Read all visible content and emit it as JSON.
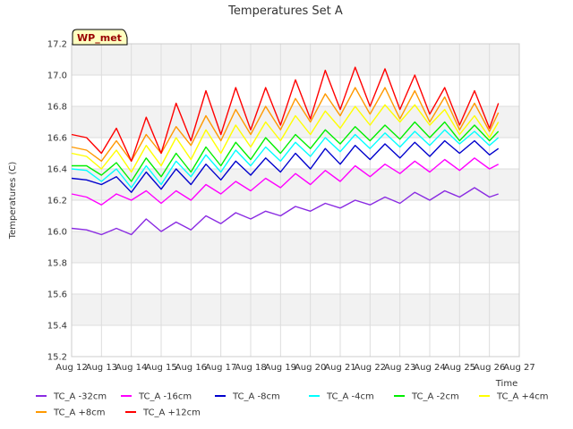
{
  "chart_data": {
    "type": "line",
    "title": "Temperatures Set A",
    "xlabel": "Time",
    "ylabel": "Temperatures (C)",
    "badge": "WP_met",
    "xlim": [
      0,
      15
    ],
    "ylim": [
      15.2,
      17.2
    ],
    "xticks": [
      {
        "v": 0,
        "label": "Aug 12"
      },
      {
        "v": 1,
        "label": "Aug 13"
      },
      {
        "v": 2,
        "label": "Aug 14"
      },
      {
        "v": 3,
        "label": "Aug 15"
      },
      {
        "v": 4,
        "label": "Aug 16"
      },
      {
        "v": 5,
        "label": "Aug 17"
      },
      {
        "v": 6,
        "label": "Aug 18"
      },
      {
        "v": 7,
        "label": "Aug 19"
      },
      {
        "v": 8,
        "label": "Aug 20"
      },
      {
        "v": 9,
        "label": "Aug 21"
      },
      {
        "v": 10,
        "label": "Aug 22"
      },
      {
        "v": 11,
        "label": "Aug 23"
      },
      {
        "v": 12,
        "label": "Aug 24"
      },
      {
        "v": 13,
        "label": "Aug 25"
      },
      {
        "v": 14,
        "label": "Aug 26"
      },
      {
        "v": 15,
        "label": "Aug 27"
      }
    ],
    "yticks": [
      {
        "v": 15.2,
        "label": "15.2"
      },
      {
        "v": 15.4,
        "label": "15.4"
      },
      {
        "v": 15.6,
        "label": "15.6"
      },
      {
        "v": 15.8,
        "label": "15.8"
      },
      {
        "v": 16.0,
        "label": "16.0"
      },
      {
        "v": 16.2,
        "label": "16.2"
      },
      {
        "v": 16.4,
        "label": "16.4"
      },
      {
        "v": 16.6,
        "label": "16.6"
      },
      {
        "v": 16.8,
        "label": "16.8"
      },
      {
        "v": 17.0,
        "label": "17.0"
      },
      {
        "v": 17.2,
        "label": "17.2"
      }
    ],
    "x": [
      0.0,
      0.5,
      1.0,
      1.5,
      2.0,
      2.5,
      3.0,
      3.5,
      4.0,
      4.5,
      5.0,
      5.5,
      6.0,
      6.5,
      7.0,
      7.5,
      8.0,
      8.5,
      9.0,
      9.5,
      10.0,
      10.5,
      11.0,
      11.5,
      12.0,
      12.5,
      13.0,
      13.5,
      14.0,
      14.3
    ],
    "series": [
      {
        "name": "TC_A -32cm",
        "color": "#8a2be2",
        "values": [
          16.02,
          16.01,
          15.98,
          16.02,
          15.98,
          16.08,
          16.0,
          16.06,
          16.01,
          16.1,
          16.05,
          16.12,
          16.08,
          16.13,
          16.1,
          16.16,
          16.13,
          16.18,
          16.15,
          16.2,
          16.17,
          16.22,
          16.18,
          16.25,
          16.2,
          16.26,
          16.22,
          16.28,
          16.22,
          16.24
        ]
      },
      {
        "name": "TC_A -16cm",
        "color": "#ff00ff",
        "values": [
          16.24,
          16.22,
          16.17,
          16.24,
          16.2,
          16.26,
          16.18,
          16.26,
          16.2,
          16.3,
          16.24,
          16.32,
          16.26,
          16.34,
          16.28,
          16.37,
          16.3,
          16.39,
          16.32,
          16.42,
          16.35,
          16.43,
          16.37,
          16.45,
          16.38,
          16.46,
          16.39,
          16.47,
          16.4,
          16.43
        ]
      },
      {
        "name": "TC_A -8cm",
        "color": "#0000cd",
        "values": [
          16.34,
          16.33,
          16.3,
          16.35,
          16.25,
          16.38,
          16.27,
          16.4,
          16.3,
          16.43,
          16.33,
          16.45,
          16.36,
          16.47,
          16.38,
          16.5,
          16.4,
          16.53,
          16.43,
          16.55,
          16.46,
          16.56,
          16.47,
          16.57,
          16.48,
          16.58,
          16.5,
          16.58,
          16.49,
          16.53
        ]
      },
      {
        "name": "TC_A -4cm",
        "color": "#00ffff",
        "values": [
          16.4,
          16.39,
          16.32,
          16.4,
          16.28,
          16.42,
          16.3,
          16.45,
          16.35,
          16.49,
          16.38,
          16.52,
          16.42,
          16.54,
          16.45,
          16.57,
          16.48,
          16.6,
          16.51,
          16.62,
          16.53,
          16.63,
          16.54,
          16.64,
          16.55,
          16.65,
          16.56,
          16.64,
          16.55,
          16.6
        ]
      },
      {
        "name": "TC_A -2cm",
        "color": "#00ee00",
        "values": [
          16.42,
          16.42,
          16.36,
          16.44,
          16.32,
          16.47,
          16.35,
          16.5,
          16.38,
          16.54,
          16.42,
          16.57,
          16.46,
          16.6,
          16.5,
          16.62,
          16.53,
          16.65,
          16.56,
          16.67,
          16.58,
          16.68,
          16.59,
          16.7,
          16.6,
          16.7,
          16.58,
          16.68,
          16.58,
          16.64
        ]
      },
      {
        "name": "TC_A +4cm",
        "color": "#ffff00",
        "values": [
          16.5,
          16.48,
          16.4,
          16.52,
          16.38,
          16.55,
          16.42,
          16.6,
          16.46,
          16.65,
          16.5,
          16.68,
          16.54,
          16.7,
          16.58,
          16.74,
          16.62,
          16.77,
          16.66,
          16.8,
          16.68,
          16.81,
          16.7,
          16.81,
          16.68,
          16.78,
          16.62,
          16.74,
          16.6,
          16.7
        ]
      },
      {
        "name": "TC_A +8cm",
        "color": "#ff9900",
        "values": [
          16.54,
          16.52,
          16.45,
          16.58,
          16.45,
          16.62,
          16.5,
          16.67,
          16.55,
          16.74,
          16.58,
          16.78,
          16.62,
          16.8,
          16.65,
          16.85,
          16.7,
          16.88,
          16.74,
          16.92,
          16.75,
          16.92,
          16.72,
          16.9,
          16.7,
          16.86,
          16.65,
          16.82,
          16.64,
          16.76
        ]
      },
      {
        "name": "TC_A +12cm",
        "color": "#ff0000",
        "values": [
          16.62,
          16.6,
          16.5,
          16.66,
          16.45,
          16.73,
          16.5,
          16.82,
          16.58,
          16.9,
          16.62,
          16.92,
          16.65,
          16.92,
          16.68,
          16.97,
          16.72,
          17.03,
          16.78,
          17.05,
          16.8,
          17.04,
          16.78,
          17.0,
          16.75,
          16.92,
          16.68,
          16.9,
          16.66,
          16.82
        ]
      }
    ],
    "grid": true,
    "legend": "bottom"
  }
}
